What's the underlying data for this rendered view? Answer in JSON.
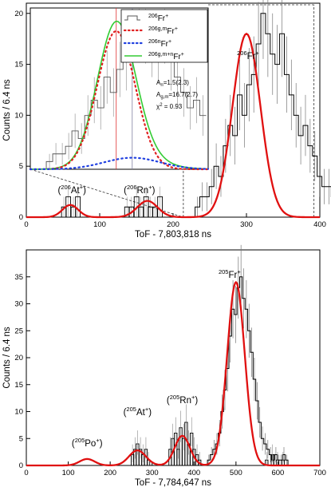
{
  "chart_data": [
    {
      "type": "histogram",
      "xlabel": "ToF - 7,803,818 ns",
      "ylabel": "Counts / 6.4 ns",
      "xlim": [
        0,
        400
      ],
      "ylim": [
        0,
        21
      ],
      "x_ticks": [
        0,
        100,
        200,
        300,
        400
      ],
      "y_ticks": [
        0,
        5,
        10,
        15,
        20
      ],
      "bin_width": 6.4,
      "histogram_start": 230,
      "histogram_counts": [
        1,
        2,
        2,
        3,
        5,
        4,
        7,
        9,
        8,
        12,
        10,
        13,
        14,
        17,
        20,
        18,
        16,
        15,
        18,
        14,
        12,
        10,
        8,
        9,
        7,
        6,
        4,
        3,
        3,
        2,
        1,
        1
      ],
      "small_peaks": [
        {
          "label": "(²⁰⁶At⁺)",
          "prefix": "(",
          "mass": "206",
          "element": "At",
          "charge": "+",
          "suffix": ")",
          "hist_x": [
            48,
            54,
            61,
            67
          ],
          "hist_y": [
            1,
            2,
            1,
            2
          ],
          "fit_center": 60,
          "fit_height": 1.2,
          "fit_width": 14
        },
        {
          "label": "(²⁰⁶Rn⁺)",
          "prefix": "(",
          "mass": "206",
          "element": "Rn",
          "charge": "+",
          "suffix": ")",
          "hist_x": [
            134,
            140,
            147,
            153,
            160,
            166,
            172,
            179
          ],
          "hist_y": [
            1,
            1,
            2,
            1,
            2,
            1,
            1,
            2
          ],
          "fit_center": 165,
          "fit_height": 1.6,
          "fit_width": 18
        }
      ],
      "fit_main": {
        "center": 300,
        "height": 18,
        "sigma": 19
      },
      "main_label": {
        "mass": "206",
        "element": "Fr",
        "charge": "+"
      },
      "dashed_box": {
        "x": [
          214,
          392
        ],
        "y": [
          0,
          21
        ]
      },
      "inset": {
        "x_range": [
          214,
          392
        ],
        "y_range": [
          0,
          21
        ],
        "legend": [
          {
            "mass": "206",
            "element": "Fr",
            "charge": "+",
            "style": "histogram",
            "color": "#555555"
          },
          {
            "mass": "206g,m",
            "element": "Fr",
            "charge": "+",
            "style": "dotted",
            "color": "#e02020"
          },
          {
            "mass": "206n",
            "element": "Fr",
            "charge": "+",
            "style": "dotted",
            "color": "#2040e0"
          },
          {
            "mass": "206g,m+n",
            "element": "Fr",
            "charge": "+",
            "style": "solid",
            "color": "#33cc33"
          }
        ],
        "annotations": [
          {
            "base": "A",
            "sub": "n",
            "value": "=1.5(2.3)"
          },
          {
            "base": "A",
            "sub": "g,m",
            "value": "=16.7(2.7)"
          },
          {
            "base": "χ",
            "sup": "2",
            "value": " = 0.93"
          }
        ],
        "vertical_lines": [
          {
            "x": 300,
            "color": "#e03030"
          },
          {
            "x": 316,
            "color": "#8080a0"
          }
        ]
      }
    },
    {
      "type": "histogram",
      "xlabel": "ToF - 7,784,647 ns",
      "ylabel": "Counts / 6.4 ns",
      "xlim": [
        0,
        700
      ],
      "ylim": [
        0,
        40
      ],
      "x_ticks": [
        0,
        100,
        200,
        300,
        400,
        500,
        600,
        700
      ],
      "y_ticks": [
        0,
        5,
        10,
        15,
        20,
        25,
        30,
        35
      ],
      "bin_width": 6.4,
      "histogram_start": 432,
      "histogram_counts": [
        1,
        2,
        3,
        4,
        6,
        10,
        14,
        18,
        24,
        29,
        28,
        33,
        35,
        31,
        29,
        25,
        21,
        16,
        12,
        8,
        5,
        4,
        3,
        2,
        1,
        2,
        1,
        1,
        2,
        1
      ],
      "extra_histogram": [
        {
          "x": 340,
          "y": 3
        },
        {
          "x": 346,
          "y": 5
        },
        {
          "x": 353,
          "y": 6
        },
        {
          "x": 359,
          "y": 3
        },
        {
          "x": 365,
          "y": 7
        },
        {
          "x": 372,
          "y": 5
        },
        {
          "x": 378,
          "y": 8
        },
        {
          "x": 384,
          "y": 4
        },
        {
          "x": 391,
          "y": 6
        },
        {
          "x": 397,
          "y": 3
        },
        {
          "x": 404,
          "y": 2
        },
        {
          "x": 410,
          "y": 1
        },
        {
          "x": 250,
          "y": 2
        },
        {
          "x": 256,
          "y": 3
        },
        {
          "x": 262,
          "y": 4
        },
        {
          "x": 269,
          "y": 3
        },
        {
          "x": 275,
          "y": 2
        },
        {
          "x": 282,
          "y": 3
        },
        {
          "x": 288,
          "y": 1
        },
        {
          "x": 570,
          "y": 1
        },
        {
          "x": 584,
          "y": 2
        },
        {
          "x": 596,
          "y": 1
        },
        {
          "x": 609,
          "y": 1
        }
      ],
      "fit_peaks": [
        {
          "center": 145,
          "height": 1.2,
          "sigma": 18
        },
        {
          "center": 265,
          "height": 2.8,
          "sigma": 20
        },
        {
          "center": 372,
          "height": 5.5,
          "sigma": 18
        },
        {
          "center": 500,
          "height": 34,
          "sigma": 21
        }
      ],
      "labels": [
        {
          "prefix": "(",
          "mass": "205",
          "element": "Po",
          "charge": "+",
          "suffix": ")"
        },
        {
          "prefix": "(",
          "mass": "205",
          "element": "At",
          "charge": "+",
          "suffix": ")"
        },
        {
          "prefix": "(",
          "mass": "205",
          "element": "Rn",
          "charge": "+",
          "suffix": ")"
        },
        {
          "prefix": "",
          "mass": "205",
          "element": "Fr",
          "charge": "+",
          "suffix": ""
        }
      ]
    }
  ]
}
